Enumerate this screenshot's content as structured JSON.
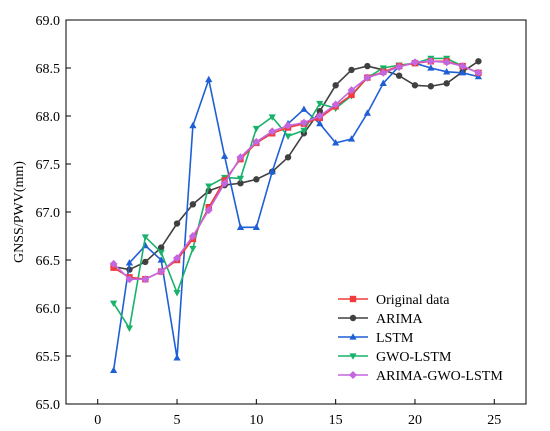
{
  "chart_data": {
    "type": "line",
    "title": "",
    "xlabel": "",
    "ylabel": "GNSS/PWV(mm)",
    "xlim": [
      -2,
      27
    ],
    "ylim": [
      65.0,
      69.0
    ],
    "xticks": [
      0,
      5,
      10,
      15,
      20,
      25
    ],
    "yticks": [
      65.0,
      65.5,
      66.0,
      66.5,
      67.0,
      67.5,
      68.0,
      68.5,
      69.0
    ],
    "x": [
      1,
      2,
      3,
      4,
      5,
      6,
      7,
      8,
      9,
      10,
      11,
      12,
      13,
      14,
      15,
      16,
      17,
      18,
      19,
      20,
      21,
      22,
      23,
      24
    ],
    "legend_position": "lower-right",
    "grid": false,
    "series": [
      {
        "name": "Original data",
        "color": "#f03c3c",
        "marker": "square",
        "values": [
          66.42,
          66.32,
          66.3,
          66.38,
          66.5,
          66.72,
          67.05,
          67.33,
          67.55,
          67.72,
          67.82,
          67.88,
          67.92,
          67.98,
          68.1,
          68.22,
          68.4,
          68.46,
          68.52,
          68.55,
          68.57,
          68.57,
          68.52,
          68.45
        ]
      },
      {
        "name": "ARIMA",
        "color": "#404040",
        "marker": "circle",
        "values": [
          66.43,
          66.4,
          66.48,
          66.63,
          66.88,
          67.08,
          67.22,
          67.28,
          67.3,
          67.34,
          67.42,
          67.57,
          67.82,
          68.05,
          68.32,
          68.48,
          68.52,
          68.48,
          68.42,
          68.32,
          68.31,
          68.34,
          68.46,
          68.57
        ]
      },
      {
        "name": "LSTM",
        "color": "#1f5fd6",
        "marker": "triangle-up",
        "values": [
          65.35,
          66.47,
          66.65,
          66.5,
          65.48,
          67.9,
          68.38,
          67.58,
          66.84,
          66.84,
          67.42,
          67.92,
          68.07,
          67.92,
          67.72,
          67.76,
          68.03,
          68.34,
          68.52,
          68.55,
          68.5,
          68.46,
          68.45,
          68.41
        ]
      },
      {
        "name": "GWO-LSTM",
        "color": "#19b26b",
        "marker": "triangle-down",
        "values": [
          66.05,
          65.79,
          66.74,
          66.58,
          66.16,
          66.62,
          67.27,
          67.36,
          67.35,
          67.87,
          67.99,
          67.79,
          67.85,
          68.13,
          68.08,
          68.21,
          68.4,
          68.5,
          68.53,
          68.55,
          68.6,
          68.6,
          68.52,
          68.45
        ]
      },
      {
        "name": "ARIMA-GWO-LSTM",
        "color": "#c466e0",
        "marker": "diamond",
        "values": [
          66.46,
          66.3,
          66.3,
          66.38,
          66.52,
          66.75,
          67.02,
          67.3,
          67.57,
          67.73,
          67.84,
          67.9,
          67.93,
          68.0,
          68.12,
          68.27,
          68.4,
          68.45,
          68.51,
          68.56,
          68.57,
          68.56,
          68.52,
          68.45
        ]
      }
    ]
  }
}
